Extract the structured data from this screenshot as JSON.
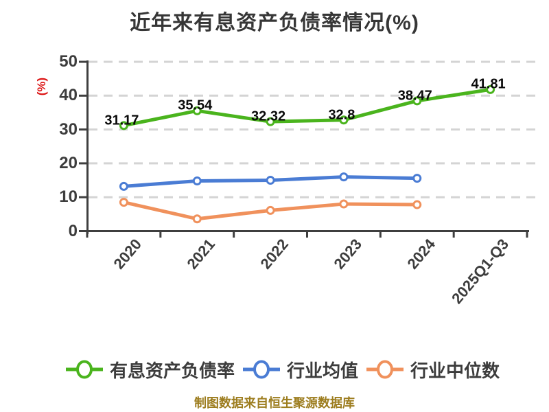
{
  "chart_data": {
    "type": "line",
    "title": "近年来有息资产负债率情况(%)",
    "y_axis_unit_label": "(%)",
    "categories": [
      "2020",
      "2021",
      "2022",
      "2023",
      "2024",
      "2025Q1-Q3"
    ],
    "y_ticks": [
      0,
      10,
      20,
      30,
      40,
      50
    ],
    "ylim": [
      0,
      50
    ],
    "xlabel": "",
    "ylabel": "(%)",
    "grid": "horizontal dashed",
    "legend_position": "bottom",
    "series": [
      {
        "name": "有息资产负债率",
        "color": "#4ab41d",
        "values": [
          31.17,
          35.54,
          32.32,
          32.8,
          38.47,
          41.81
        ],
        "point_labels": [
          "31.17",
          "35.54",
          "32.32",
          "32.8",
          "38.47",
          "41.81"
        ]
      },
      {
        "name": "行业均值",
        "color": "#4a7cd4",
        "values": [
          13.2,
          14.8,
          15.0,
          16.0,
          15.6
        ],
        "point_labels": []
      },
      {
        "name": "行业中位数",
        "color": "#f0915c",
        "values": [
          8.5,
          3.6,
          6.1,
          8.0,
          7.8
        ],
        "point_labels": []
      }
    ],
    "footer": "制图数据来自恒生聚源数据库"
  },
  "colors": {
    "title_text": "#363636",
    "axis_line": "#3f3f3f",
    "tick_label": "#3d3d3d",
    "grid_line": "#d4d4d4",
    "y_unit_red": "#dc1414",
    "point_label": "#0a0a0a",
    "footer_gold": "#9d7d1f",
    "marker_fill": "#ffffff"
  }
}
